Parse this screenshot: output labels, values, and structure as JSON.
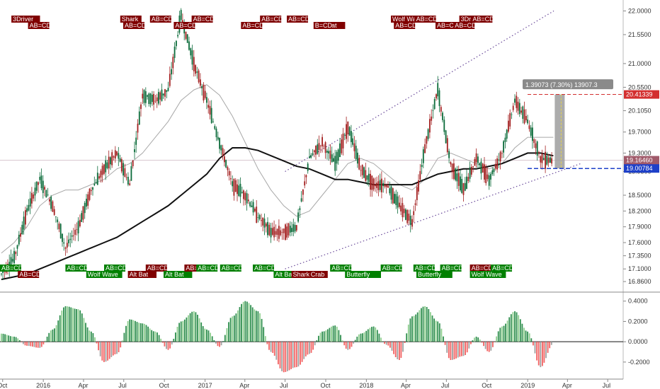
{
  "chart_data": [
    {
      "type": "candlestick",
      "title": "",
      "x_ticks": [
        "Oct",
        "2016",
        "Apr",
        "Jul",
        "Oct",
        "2017",
        "Apr",
        "Jul",
        "Oct",
        "2018",
        "Apr",
        "Jul",
        "Oct",
        "2019",
        "Apr",
        "Jul"
      ],
      "y_ticks": [
        "22.0000",
        "21.5500",
        "21.0000",
        "20.5500",
        "20.1050",
        "19.7000",
        "19.3000",
        "18.9500",
        "18.5000",
        "18.2000",
        "17.9000",
        "17.6000",
        "17.3500",
        "17.1000",
        "16.8600"
      ],
      "ylim": [
        16.7,
        22.1
      ],
      "closes": [
        17.0,
        17.3,
        18.2,
        18.8,
        18.3,
        17.5,
        17.9,
        18.6,
        19.0,
        19.3,
        18.7,
        20.4,
        20.3,
        20.5,
        21.9,
        21.0,
        20.3,
        19.5,
        18.7,
        18.5,
        18.1,
        17.8,
        17.8,
        17.9,
        19.2,
        19.5,
        19.1,
        19.8,
        19.0,
        18.7,
        18.7,
        18.3,
        18.0,
        19.4,
        20.5,
        19.1,
        18.6,
        19.2,
        18.8,
        19.3,
        20.3,
        19.9,
        19.2,
        19.16
      ],
      "ma_fast": [
        17.4,
        17.6,
        17.9,
        18.3,
        18.5,
        18.6,
        18.6,
        18.7,
        18.8,
        19.0,
        19.1,
        19.3,
        19.6,
        19.9,
        20.3,
        20.5,
        20.6,
        20.4,
        20.0,
        19.5,
        19.0,
        18.6,
        18.3,
        18.1,
        18.2,
        18.5,
        18.8,
        19.1,
        19.2,
        19.1,
        18.9,
        18.7,
        18.6,
        18.8,
        19.2,
        19.3,
        19.2,
        19.1,
        19.0,
        19.1,
        19.4,
        19.6,
        19.6,
        19.6
      ],
      "ma_slow": [
        16.9,
        16.95,
        17.0,
        17.1,
        17.2,
        17.3,
        17.4,
        17.5,
        17.6,
        17.7,
        17.85,
        18.0,
        18.15,
        18.3,
        18.5,
        18.7,
        18.9,
        19.2,
        19.4,
        19.4,
        19.35,
        19.25,
        19.15,
        19.05,
        19.0,
        18.9,
        18.8,
        18.8,
        18.75,
        18.7,
        18.7,
        18.7,
        18.7,
        18.8,
        18.9,
        18.95,
        19.0,
        19.0,
        19.05,
        19.1,
        19.2,
        19.3,
        19.3,
        19.25
      ],
      "channel_upper": {
        "from": {
          "date": "2017-07",
          "price": 18.95
        },
        "to": {
          "date": "2019-03",
          "price": 22.0
        }
      },
      "channel_lower": {
        "from": {
          "date": "2017-07",
          "price": 17.1
        },
        "to": {
          "date": "2019-05",
          "price": 19.1
        }
      },
      "measure_label": "1.39073 (7.30%) 13907.3",
      "price_labels": [
        {
          "value": 20.41339,
          "text": "20.41339",
          "color": "#d32f2f"
        },
        {
          "value": 19.1646,
          "text": "19.16460",
          "color": "#a05a6a"
        },
        {
          "value": 19.00784,
          "text": "19.00784",
          "color": "#1e40c8"
        }
      ],
      "top_tags": [
        {
          "text": "3Driver",
          "pos": 0.012
        },
        {
          "text": "AB=CD",
          "pos": 0.04
        },
        {
          "text": "Shark",
          "pos": 0.195
        },
        {
          "text": "AB=CD",
          "pos": 0.2
        },
        {
          "text": "AB=CD",
          "pos": 0.245
        },
        {
          "text": "AB=CD",
          "pos": 0.285
        },
        {
          "text": "AB=CD",
          "pos": 0.315
        },
        {
          "text": "AB=CD",
          "pos": 0.398
        },
        {
          "text": "AB=CD",
          "pos": 0.43
        },
        {
          "text": "Alt Bat",
          "pos": 0.525
        },
        {
          "text": "AB=CD",
          "pos": 0.475
        },
        {
          "text": "B=CD",
          "pos": 0.52
        },
        {
          "text": "Wolf Wave",
          "pos": 0.65
        },
        {
          "text": "AB=CD",
          "pos": 0.655
        },
        {
          "text": "AB=CD",
          "pos": 0.69
        },
        {
          "text": "AB=CD",
          "pos": 0.725
        },
        {
          "text": "3Driver",
          "pos": 0.765
        },
        {
          "text": "AB=CD",
          "pos": 0.755
        },
        {
          "text": "AB=CD",
          "pos": 0.785
        }
      ],
      "bottom_tags": [
        {
          "text": "AB=CD",
          "pos": 0.0,
          "color": "#008000",
          "row": 0
        },
        {
          "text": "AB=CD",
          "pos": 0.03,
          "color": "#800000",
          "row": 1
        },
        {
          "text": "AB=CD",
          "pos": 0.11,
          "color": "#008000",
          "row": 0
        },
        {
          "text": "Wolf Wave",
          "pos": 0.145,
          "color": "#008000",
          "row": 1
        },
        {
          "text": "AB=CD",
          "pos": 0.175,
          "color": "#008000",
          "row": 0
        },
        {
          "text": "Alt Bat",
          "pos": 0.215,
          "color": "#800000",
          "row": 1
        },
        {
          "text": "AB=CD",
          "pos": 0.245,
          "color": "#800000",
          "row": 0
        },
        {
          "text": "Alt Bat",
          "pos": 0.275,
          "color": "#008000",
          "row": 1
        },
        {
          "text": "AB=CD",
          "pos": 0.31,
          "color": "#800000",
          "row": 0
        },
        {
          "text": "AB=CD",
          "pos": 0.33,
          "color": "#008000",
          "row": 0
        },
        {
          "text": "AB=CD",
          "pos": 0.37,
          "color": "#008000",
          "row": 0
        },
        {
          "text": "AB=CD",
          "pos": 0.425,
          "color": "#008000",
          "row": 0
        },
        {
          "text": "Alt Ba",
          "pos": 0.46,
          "color": "#008000",
          "row": 1
        },
        {
          "text": "Shark",
          "pos": 0.49,
          "color": "#800000",
          "row": 1
        },
        {
          "text": "Crab",
          "pos": 0.52,
          "color": "#800000",
          "row": 1
        },
        {
          "text": "AB=CD",
          "pos": 0.555,
          "color": "#008000",
          "row": 0
        },
        {
          "text": "Butterfly",
          "pos": 0.58,
          "color": "#008000",
          "row": 1
        },
        {
          "text": "AB=CD",
          "pos": 0.64,
          "color": "#008000",
          "row": 0
        },
        {
          "text": "AB=CD",
          "pos": 0.695,
          "color": "#008000",
          "row": 0
        },
        {
          "text": "Butterfly",
          "pos": 0.7,
          "color": "#008000",
          "row": 1
        },
        {
          "text": "AB=CD",
          "pos": 0.74,
          "color": "#008000",
          "row": 0
        },
        {
          "text": "AB=CD",
          "pos": 0.79,
          "color": "#800000",
          "row": 0
        },
        {
          "text": "Wolf Wave",
          "pos": 0.79,
          "color": "#008000",
          "row": 1
        },
        {
          "text": "AB=CD",
          "pos": 0.825,
          "color": "#008000",
          "row": 0
        }
      ]
    },
    {
      "type": "histogram",
      "title": "",
      "y_ticks": [
        "0.4000",
        "0.2000",
        "0.0000",
        "-0.2000"
      ],
      "ylim": [
        -0.34,
        0.44
      ],
      "values": [
        0.08,
        0.05,
        -0.04,
        -0.06,
        0.12,
        0.35,
        0.32,
        0.1,
        -0.2,
        -0.12,
        0.22,
        0.18,
        0.1,
        -0.08,
        0.2,
        0.3,
        0.12,
        -0.05,
        0.25,
        0.4,
        0.3,
        -0.1,
        -0.3,
        -0.25,
        -0.12,
        0.1,
        0.16,
        -0.08,
        0.08,
        0.15,
        -0.03,
        -0.18,
        0.25,
        0.35,
        0.2,
        -0.18,
        -0.14,
        0.05,
        -0.1,
        0.15,
        0.3,
        0.1,
        -0.25,
        -0.02
      ]
    }
  ]
}
